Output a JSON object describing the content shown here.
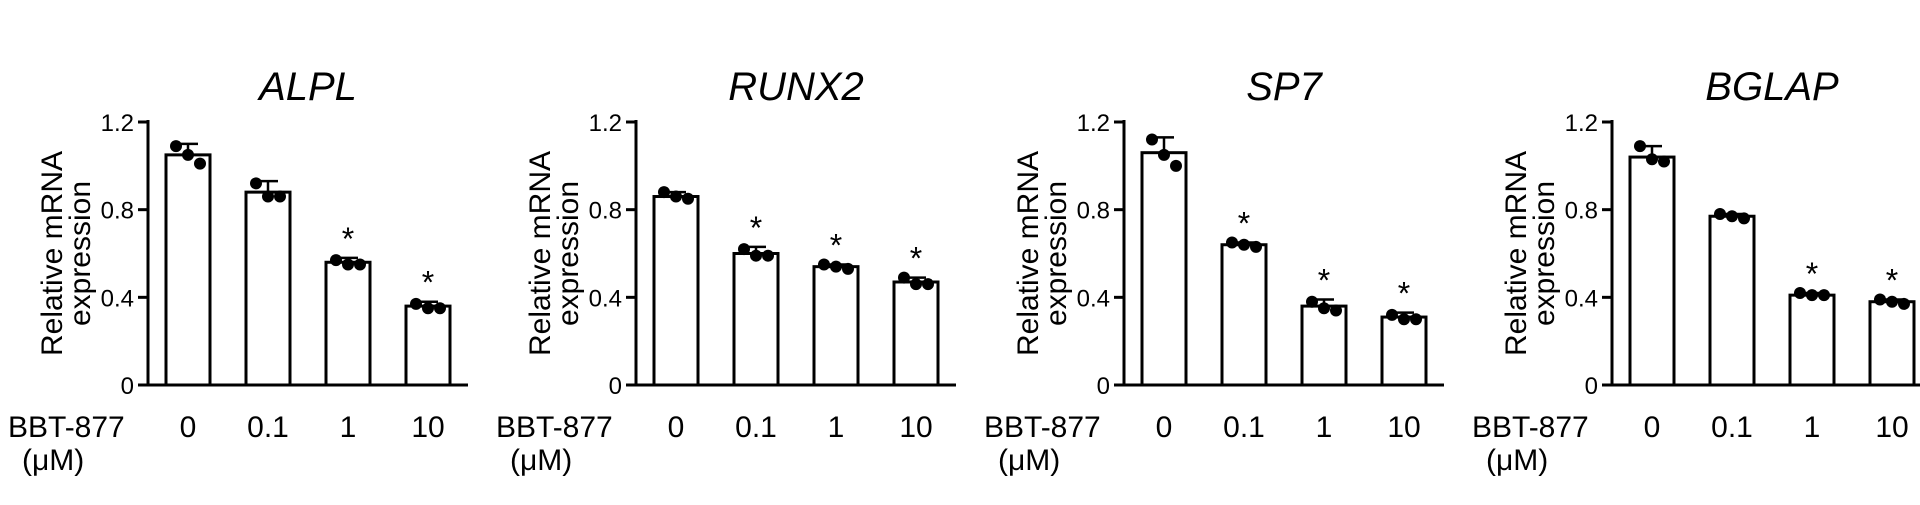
{
  "treatment_label": "BBT-877",
  "unit_label": "(μM)",
  "colors": {
    "bar_fill": "#ffffff",
    "stroke": "#000000",
    "point": "#000000"
  },
  "chart_data": [
    {
      "type": "bar",
      "title": "ALPL",
      "ylabel": "Relative mRNA expression",
      "ylabel_lines": [
        "Relative mRNA",
        "expression"
      ],
      "categories": [
        "0",
        "0.1",
        "1",
        "10"
      ],
      "values": [
        1.05,
        0.88,
        0.56,
        0.36
      ],
      "errors": [
        0.05,
        0.05,
        0.02,
        0.02
      ],
      "points": [
        [
          1.09,
          1.05,
          1.01
        ],
        [
          0.92,
          0.86,
          0.86
        ],
        [
          0.57,
          0.55,
          0.55
        ],
        [
          0.37,
          0.35,
          0.35
        ]
      ],
      "significance": [
        "",
        "",
        "*",
        "*"
      ],
      "ylim": [
        0,
        1.2
      ],
      "yticks": [
        "0",
        "0.4",
        "0.8",
        "1.2"
      ]
    },
    {
      "type": "bar",
      "title": "RUNX2",
      "ylabel": "Relative mRNA expression",
      "ylabel_lines": [
        "Relative mRNA",
        "expression"
      ],
      "categories": [
        "0",
        "0.1",
        "1",
        "10"
      ],
      "values": [
        0.86,
        0.6,
        0.54,
        0.47
      ],
      "errors": [
        0.02,
        0.03,
        0.01,
        0.02
      ],
      "points": [
        [
          0.88,
          0.86,
          0.85
        ],
        [
          0.62,
          0.59,
          0.59
        ],
        [
          0.55,
          0.54,
          0.53
        ],
        [
          0.49,
          0.46,
          0.46
        ]
      ],
      "significance": [
        "",
        "*",
        "*",
        "*"
      ],
      "ylim": [
        0,
        1.2
      ],
      "yticks": [
        "0",
        "0.4",
        "0.8",
        "1.2"
      ]
    },
    {
      "type": "bar",
      "title": "SP7",
      "ylabel": "Relative mRNA expression",
      "ylabel_lines": [
        "Relative mRNA",
        "expression"
      ],
      "categories": [
        "0",
        "0.1",
        "1",
        "10"
      ],
      "values": [
        1.06,
        0.64,
        0.36,
        0.31
      ],
      "errors": [
        0.07,
        0.01,
        0.03,
        0.02
      ],
      "points": [
        [
          1.12,
          1.05,
          1.0
        ],
        [
          0.65,
          0.64,
          0.63
        ],
        [
          0.38,
          0.35,
          0.34
        ],
        [
          0.32,
          0.3,
          0.3
        ]
      ],
      "significance": [
        "",
        "*",
        "*",
        "*"
      ],
      "ylim": [
        0,
        1.2
      ],
      "yticks": [
        "0",
        "0.4",
        "0.8",
        "1.2"
      ]
    },
    {
      "type": "bar",
      "title": "BGLAP",
      "ylabel": "Relative mRNA expression",
      "ylabel_lines": [
        "Relative mRNA",
        "expression"
      ],
      "categories": [
        "0",
        "0.1",
        "1",
        "10"
      ],
      "values": [
        1.04,
        0.77,
        0.41,
        0.38
      ],
      "errors": [
        0.05,
        0.01,
        0.01,
        0.01
      ],
      "points": [
        [
          1.09,
          1.03,
          1.02
        ],
        [
          0.78,
          0.77,
          0.76
        ],
        [
          0.42,
          0.41,
          0.41
        ],
        [
          0.39,
          0.38,
          0.37
        ]
      ],
      "significance": [
        "",
        "",
        "*",
        "*"
      ],
      "ylim": [
        0,
        1.2
      ],
      "yticks": [
        "0",
        "0.4",
        "0.8",
        "1.2"
      ]
    }
  ]
}
